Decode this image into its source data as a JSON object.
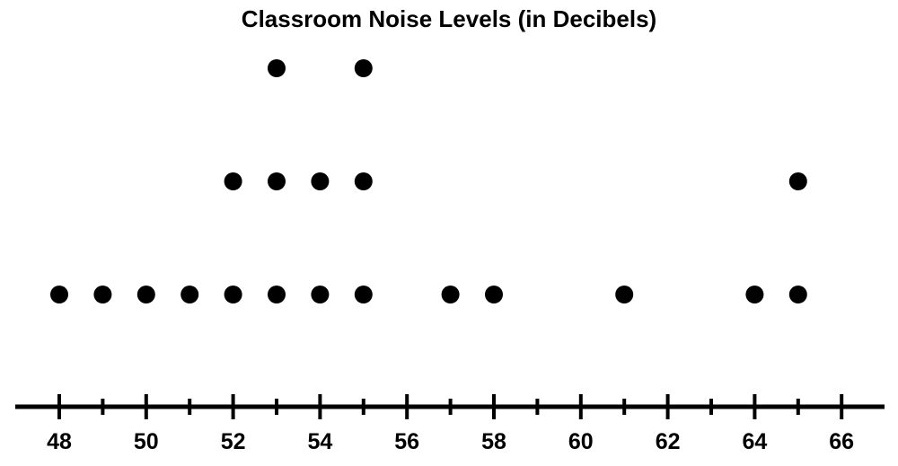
{
  "chart_data": {
    "type": "dot-plot",
    "title": "Classroom Noise Levels (in Decibels)",
    "xlabel": "",
    "ylabel": "",
    "xlim": [
      47,
      67
    ],
    "x_ticks": [
      48,
      49,
      50,
      51,
      52,
      53,
      54,
      55,
      56,
      57,
      58,
      59,
      60,
      61,
      62,
      63,
      64,
      65,
      66
    ],
    "x_tick_labels": [
      "48",
      "50",
      "52",
      "54",
      "56",
      "58",
      "60",
      "62",
      "64",
      "66"
    ],
    "points": [
      {
        "value": 48,
        "count": 1
      },
      {
        "value": 49,
        "count": 1
      },
      {
        "value": 50,
        "count": 1
      },
      {
        "value": 51,
        "count": 1
      },
      {
        "value": 52,
        "count": 2
      },
      {
        "value": 53,
        "count": 3
      },
      {
        "value": 54,
        "count": 2
      },
      {
        "value": 55,
        "count": 3
      },
      {
        "value": 57,
        "count": 1
      },
      {
        "value": 58,
        "count": 1
      },
      {
        "value": 61,
        "count": 1
      },
      {
        "value": 64,
        "count": 1
      },
      {
        "value": 65,
        "count": 2
      }
    ],
    "colors": {
      "dot": "#000000",
      "axis": "#000000"
    },
    "grid": false
  }
}
